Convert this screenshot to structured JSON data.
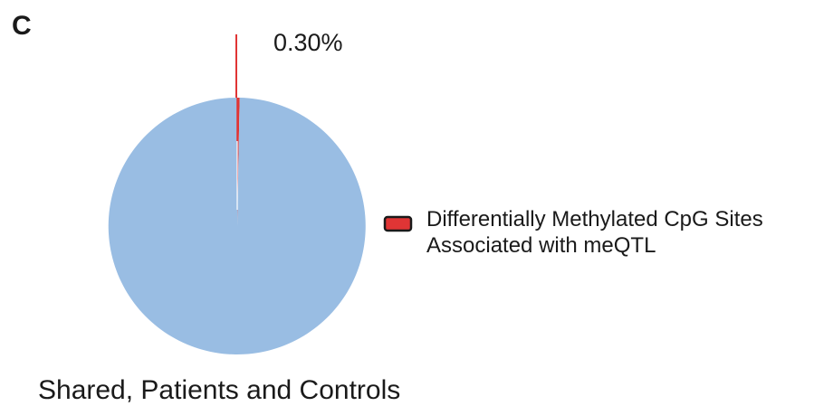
{
  "panel_label": "C",
  "chart_data": {
    "type": "pie",
    "caption": "Shared, Patients and Controls",
    "slices": [
      {
        "name": "Differentially Methylated CpG Sites Associated with meQTL",
        "value": 0.3,
        "label": "0.30%",
        "color": "#e03535"
      },
      {
        "name": "",
        "value": 99.7,
        "label": "",
        "color": "#99bde3"
      }
    ],
    "legend": {
      "position": "right",
      "lines": [
        "Differentially Methylated CpG Sites",
        "Associated with meQTL"
      ],
      "swatch_color": "#e03535"
    }
  }
}
